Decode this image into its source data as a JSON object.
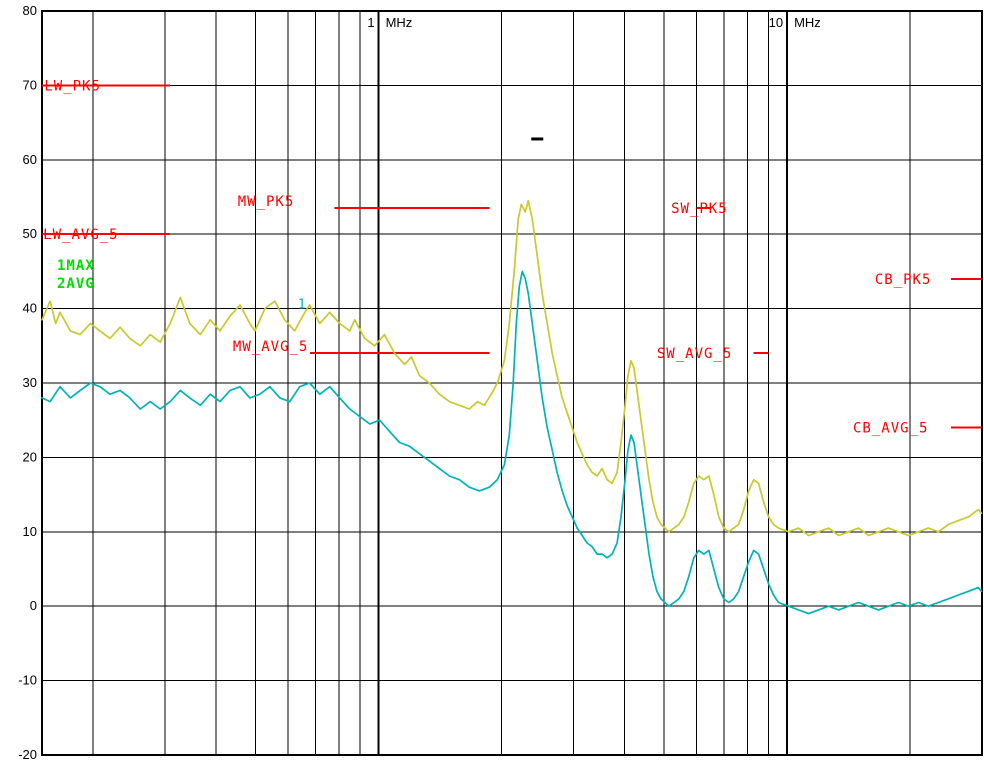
{
  "chart_data": {
    "type": "line",
    "title": "",
    "x_axis": {
      "scale": "log",
      "unit": "MHz",
      "min": 0.15,
      "max": 30,
      "labeled_ticks": [
        {
          "f": 1,
          "value_label": "1",
          "unit_label": "MHz"
        },
        {
          "f": 10,
          "value_label": "10",
          "unit_label": "MHz"
        }
      ],
      "minor_gridlines": [
        0.2,
        0.3,
        0.4,
        0.5,
        0.6,
        0.7,
        0.8,
        0.9,
        2,
        3,
        4,
        5,
        6,
        7,
        8,
        9,
        20
      ]
    },
    "y_axis": {
      "min": -20,
      "max": 80,
      "step": 10,
      "ticks": [
        {
          "value": 80,
          "label": "80"
        },
        {
          "value": 70,
          "label": "70"
        },
        {
          "value": 60,
          "label": "60"
        },
        {
          "value": 50,
          "label": "50"
        },
        {
          "value": 40,
          "label": "40"
        },
        {
          "value": 30,
          "label": "30"
        },
        {
          "value": 20,
          "label": "20"
        },
        {
          "value": 10,
          "label": "10"
        },
        {
          "value": 0,
          "label": "0"
        },
        {
          "value": -10,
          "label": "-10"
        },
        {
          "value": -20,
          "label": "-20"
        }
      ]
    },
    "colors": {
      "grid": "#000000",
      "limit": "#ff0000",
      "trace_max": "#c9c92e",
      "trace_avg": "#00b4b4",
      "legend_green": "#00dd00",
      "background": "#ffffff"
    },
    "legend": {
      "position": "top-left",
      "items": [
        {
          "label": "1MAX",
          "color": "#00dd00"
        },
        {
          "label": "2AVG",
          "color": "#00dd00"
        }
      ]
    },
    "limit_lines": [
      {
        "name": "LW_PK5",
        "label": "LW_PK5",
        "level_db": 70,
        "line_f_start": 0.15,
        "line_f_end": 0.309,
        "label_f": 0.152,
        "label_pos": "on"
      },
      {
        "name": "LW_AVG_5",
        "label": "LW_AVG_5",
        "level_db": 50,
        "line_f_start": 0.15,
        "line_f_end": 0.309,
        "label_f": 0.151,
        "label_pos": "on"
      },
      {
        "name": "MW_PK5",
        "label": "MW_PK5",
        "level_db": 53.5,
        "line_f_start": 0.78,
        "line_f_end": 1.867,
        "label_f": 0.452,
        "label_pos": "above"
      },
      {
        "name": "MW_AVG_5",
        "label": "MW_AVG_5",
        "level_db": 34,
        "line_f_start": 0.68,
        "line_f_end": 1.867,
        "label_f": 0.44,
        "label_pos": "above"
      },
      {
        "name": "SW_PK5",
        "label": "SW_PK5",
        "level_db": 53.5,
        "line_f_start": 6.0,
        "line_f_end": 6.5,
        "label_f": 5.2,
        "label_pos": "on"
      },
      {
        "name": "SW_AVG_5",
        "label": "SW_AVG_5",
        "level_db": 34,
        "line_f_start": 8.28,
        "line_f_end": 9.0,
        "label_f": 4.8,
        "label_pos": "on"
      },
      {
        "name": "CB_PK5",
        "label": "CB_PK5",
        "level_db": 44,
        "line_f_start": 25.2,
        "line_f_end": 29.9,
        "label_f": 16.4,
        "label_pos": "on"
      },
      {
        "name": "CB_AVG_5",
        "label": "CB_AVG_5",
        "level_db": 24,
        "line_f_start": 25.2,
        "line_f_end": 29.9,
        "label_f": 14.5,
        "label_pos": "on"
      }
    ],
    "markers": [
      {
        "shape": "text",
        "label": "1",
        "f": 0.634,
        "db": 40,
        "color": "#00b4b4"
      },
      {
        "shape": "dash",
        "label": "-",
        "f": 2.446,
        "db": 62.8,
        "color": "#000000"
      }
    ],
    "series": [
      {
        "name": "1MAX",
        "color": "#c9c92e",
        "points": [
          [
            0.15,
            38.5
          ],
          [
            0.157,
            41
          ],
          [
            0.162,
            38
          ],
          [
            0.166,
            39.5
          ],
          [
            0.176,
            37
          ],
          [
            0.186,
            36.5
          ],
          [
            0.197,
            38
          ],
          [
            0.208,
            37
          ],
          [
            0.22,
            36
          ],
          [
            0.233,
            37.5
          ],
          [
            0.246,
            36
          ],
          [
            0.261,
            35
          ],
          [
            0.276,
            36.5
          ],
          [
            0.292,
            35.5
          ],
          [
            0.309,
            38
          ],
          [
            0.327,
            41.5
          ],
          [
            0.345,
            38
          ],
          [
            0.366,
            36.5
          ],
          [
            0.387,
            38.5
          ],
          [
            0.409,
            37
          ],
          [
            0.433,
            39
          ],
          [
            0.458,
            40.5
          ],
          [
            0.484,
            38
          ],
          [
            0.498,
            37
          ],
          [
            0.527,
            40
          ],
          [
            0.557,
            41
          ],
          [
            0.589,
            38.5
          ],
          [
            0.623,
            37
          ],
          [
            0.66,
            39.5
          ],
          [
            0.678,
            40.5
          ],
          [
            0.718,
            38
          ],
          [
            0.759,
            39.5
          ],
          [
            0.803,
            38
          ],
          [
            0.85,
            37
          ],
          [
            0.874,
            38.5
          ],
          [
            0.924,
            36
          ],
          [
            0.978,
            35
          ],
          [
            1.034,
            36.5
          ],
          [
            1.094,
            34
          ],
          [
            1.158,
            32.5
          ],
          [
            1.204,
            33.5
          ],
          [
            1.259,
            31
          ],
          [
            1.332,
            30
          ],
          [
            1.409,
            28.5
          ],
          [
            1.491,
            27.5
          ],
          [
            1.577,
            27
          ],
          [
            1.668,
            26.5
          ],
          [
            1.746,
            27.5
          ],
          [
            1.815,
            27
          ],
          [
            1.888,
            28.5
          ],
          [
            1.953,
            30
          ],
          [
            2.032,
            33
          ],
          [
            2.089,
            38
          ],
          [
            2.148,
            45
          ],
          [
            2.197,
            52
          ],
          [
            2.235,
            54
          ],
          [
            2.286,
            53
          ],
          [
            2.325,
            54.5
          ],
          [
            2.378,
            52
          ],
          [
            2.446,
            47
          ],
          [
            2.515,
            42
          ],
          [
            2.587,
            38
          ],
          [
            2.661,
            34
          ],
          [
            2.736,
            31
          ],
          [
            2.815,
            28
          ],
          [
            2.895,
            26
          ],
          [
            2.978,
            24
          ],
          [
            3.063,
            22
          ],
          [
            3.15,
            20.5
          ],
          [
            3.24,
            19
          ],
          [
            3.332,
            18
          ],
          [
            3.427,
            17.5
          ],
          [
            3.525,
            18.5
          ],
          [
            3.626,
            17
          ],
          [
            3.729,
            16.5
          ],
          [
            3.835,
            18
          ],
          [
            3.922,
            22
          ],
          [
            4.012,
            27
          ],
          [
            4.08,
            31
          ],
          [
            4.149,
            33
          ],
          [
            4.22,
            32
          ],
          [
            4.291,
            29
          ],
          [
            4.389,
            25
          ],
          [
            4.489,
            21
          ],
          [
            4.591,
            17
          ],
          [
            4.695,
            14
          ],
          [
            4.802,
            12
          ],
          [
            4.911,
            11
          ],
          [
            5.023,
            10.5
          ],
          [
            5.137,
            10
          ],
          [
            5.284,
            10.5
          ],
          [
            5.434,
            11
          ],
          [
            5.589,
            12
          ],
          [
            5.748,
            14
          ],
          [
            5.912,
            16.5
          ],
          [
            6.081,
            17.5
          ],
          [
            6.255,
            17
          ],
          [
            6.434,
            17.5
          ],
          [
            6.617,
            15
          ],
          [
            6.805,
            12
          ],
          [
            6.999,
            10.5
          ],
          [
            7.198,
            10
          ],
          [
            7.403,
            10.5
          ],
          [
            7.614,
            11
          ],
          [
            7.831,
            13
          ],
          [
            8.054,
            15.5
          ],
          [
            8.283,
            17
          ],
          [
            8.518,
            16.5
          ],
          [
            8.76,
            14
          ],
          [
            9.008,
            12
          ],
          [
            9.264,
            11
          ],
          [
            9.527,
            10.5
          ],
          [
            10.09,
            10
          ],
          [
            10.67,
            10.5
          ],
          [
            11.29,
            9.5
          ],
          [
            11.94,
            10
          ],
          [
            12.64,
            10.5
          ],
          [
            13.37,
            9.5
          ],
          [
            14.14,
            10
          ],
          [
            14.96,
            10.5
          ],
          [
            15.83,
            9.5
          ],
          [
            16.74,
            10
          ],
          [
            17.71,
            10.5
          ],
          [
            18.73,
            10
          ],
          [
            19.82,
            9.5
          ],
          [
            20.96,
            10
          ],
          [
            22.18,
            10.5
          ],
          [
            23.46,
            10
          ],
          [
            24.82,
            11
          ],
          [
            26.26,
            11.5
          ],
          [
            27.78,
            12
          ],
          [
            29.39,
            13
          ],
          [
            29.9,
            12.5
          ]
        ]
      },
      {
        "name": "2AVG",
        "color": "#00b4b4",
        "points": [
          [
            0.15,
            28
          ],
          [
            0.157,
            27.5
          ],
          [
            0.166,
            29.5
          ],
          [
            0.176,
            28
          ],
          [
            0.186,
            29
          ],
          [
            0.197,
            30
          ],
          [
            0.208,
            29.5
          ],
          [
            0.22,
            28.5
          ],
          [
            0.233,
            29
          ],
          [
            0.246,
            28
          ],
          [
            0.261,
            26.5
          ],
          [
            0.276,
            27.5
          ],
          [
            0.292,
            26.5
          ],
          [
            0.309,
            27.5
          ],
          [
            0.327,
            29
          ],
          [
            0.345,
            28
          ],
          [
            0.366,
            27
          ],
          [
            0.387,
            28.5
          ],
          [
            0.409,
            27.5
          ],
          [
            0.433,
            29
          ],
          [
            0.458,
            29.5
          ],
          [
            0.484,
            28
          ],
          [
            0.512,
            28.5
          ],
          [
            0.542,
            29.5
          ],
          [
            0.573,
            28
          ],
          [
            0.606,
            27.5
          ],
          [
            0.641,
            29.5
          ],
          [
            0.678,
            30
          ],
          [
            0.718,
            28.5
          ],
          [
            0.759,
            29.5
          ],
          [
            0.803,
            28
          ],
          [
            0.85,
            26.5
          ],
          [
            0.899,
            25.5
          ],
          [
            0.951,
            24.5
          ],
          [
            1.006,
            25
          ],
          [
            1.064,
            23.5
          ],
          [
            1.125,
            22
          ],
          [
            1.19,
            21.5
          ],
          [
            1.259,
            20.5
          ],
          [
            1.332,
            19.5
          ],
          [
            1.409,
            18.5
          ],
          [
            1.491,
            17.5
          ],
          [
            1.577,
            17
          ],
          [
            1.668,
            16
          ],
          [
            1.765,
            15.5
          ],
          [
            1.867,
            16
          ],
          [
            1.953,
            17
          ],
          [
            2.032,
            19
          ],
          [
            2.089,
            23
          ],
          [
            2.136,
            30
          ],
          [
            2.173,
            38
          ],
          [
            2.21,
            43
          ],
          [
            2.248,
            45
          ],
          [
            2.286,
            44
          ],
          [
            2.325,
            42
          ],
          [
            2.378,
            38
          ],
          [
            2.446,
            33
          ],
          [
            2.515,
            28
          ],
          [
            2.587,
            24
          ],
          [
            2.661,
            21
          ],
          [
            2.736,
            18
          ],
          [
            2.815,
            15.5
          ],
          [
            2.895,
            13.5
          ],
          [
            2.978,
            12
          ],
          [
            3.063,
            10.5
          ],
          [
            3.15,
            9.5
          ],
          [
            3.24,
            8.5
          ],
          [
            3.332,
            8
          ],
          [
            3.427,
            7
          ],
          [
            3.525,
            7
          ],
          [
            3.626,
            6.5
          ],
          [
            3.729,
            7
          ],
          [
            3.835,
            8.5
          ],
          [
            3.922,
            12
          ],
          [
            4.012,
            17
          ],
          [
            4.08,
            21
          ],
          [
            4.149,
            23
          ],
          [
            4.22,
            22
          ],
          [
            4.291,
            19
          ],
          [
            4.389,
            15
          ],
          [
            4.489,
            11
          ],
          [
            4.591,
            7
          ],
          [
            4.695,
            4
          ],
          [
            4.802,
            2
          ],
          [
            4.911,
            1
          ],
          [
            5.023,
            0.5
          ],
          [
            5.137,
            0
          ],
          [
            5.284,
            0.5
          ],
          [
            5.434,
            1
          ],
          [
            5.589,
            2
          ],
          [
            5.748,
            4
          ],
          [
            5.912,
            6.5
          ],
          [
            6.081,
            7.5
          ],
          [
            6.255,
            7
          ],
          [
            6.434,
            7.5
          ],
          [
            6.617,
            5
          ],
          [
            6.805,
            2.5
          ],
          [
            6.999,
            1
          ],
          [
            7.198,
            0.5
          ],
          [
            7.403,
            1
          ],
          [
            7.614,
            2
          ],
          [
            7.831,
            4
          ],
          [
            8.054,
            6
          ],
          [
            8.283,
            7.5
          ],
          [
            8.518,
            7
          ],
          [
            8.76,
            5
          ],
          [
            9.008,
            3
          ],
          [
            9.264,
            1.5
          ],
          [
            9.527,
            0.5
          ],
          [
            10.09,
            0
          ],
          [
            10.67,
            -0.5
          ],
          [
            11.29,
            -1
          ],
          [
            11.94,
            -0.5
          ],
          [
            12.64,
            0
          ],
          [
            13.37,
            -0.5
          ],
          [
            14.14,
            0
          ],
          [
            14.96,
            0.5
          ],
          [
            15.83,
            0
          ],
          [
            16.74,
            -0.5
          ],
          [
            17.71,
            0
          ],
          [
            18.73,
            0.5
          ],
          [
            19.82,
            0
          ],
          [
            20.96,
            0.5
          ],
          [
            22.18,
            0
          ],
          [
            23.46,
            0.5
          ],
          [
            24.82,
            1
          ],
          [
            26.26,
            1.5
          ],
          [
            27.78,
            2
          ],
          [
            29.39,
            2.5
          ],
          [
            29.9,
            2
          ]
        ]
      }
    ]
  }
}
